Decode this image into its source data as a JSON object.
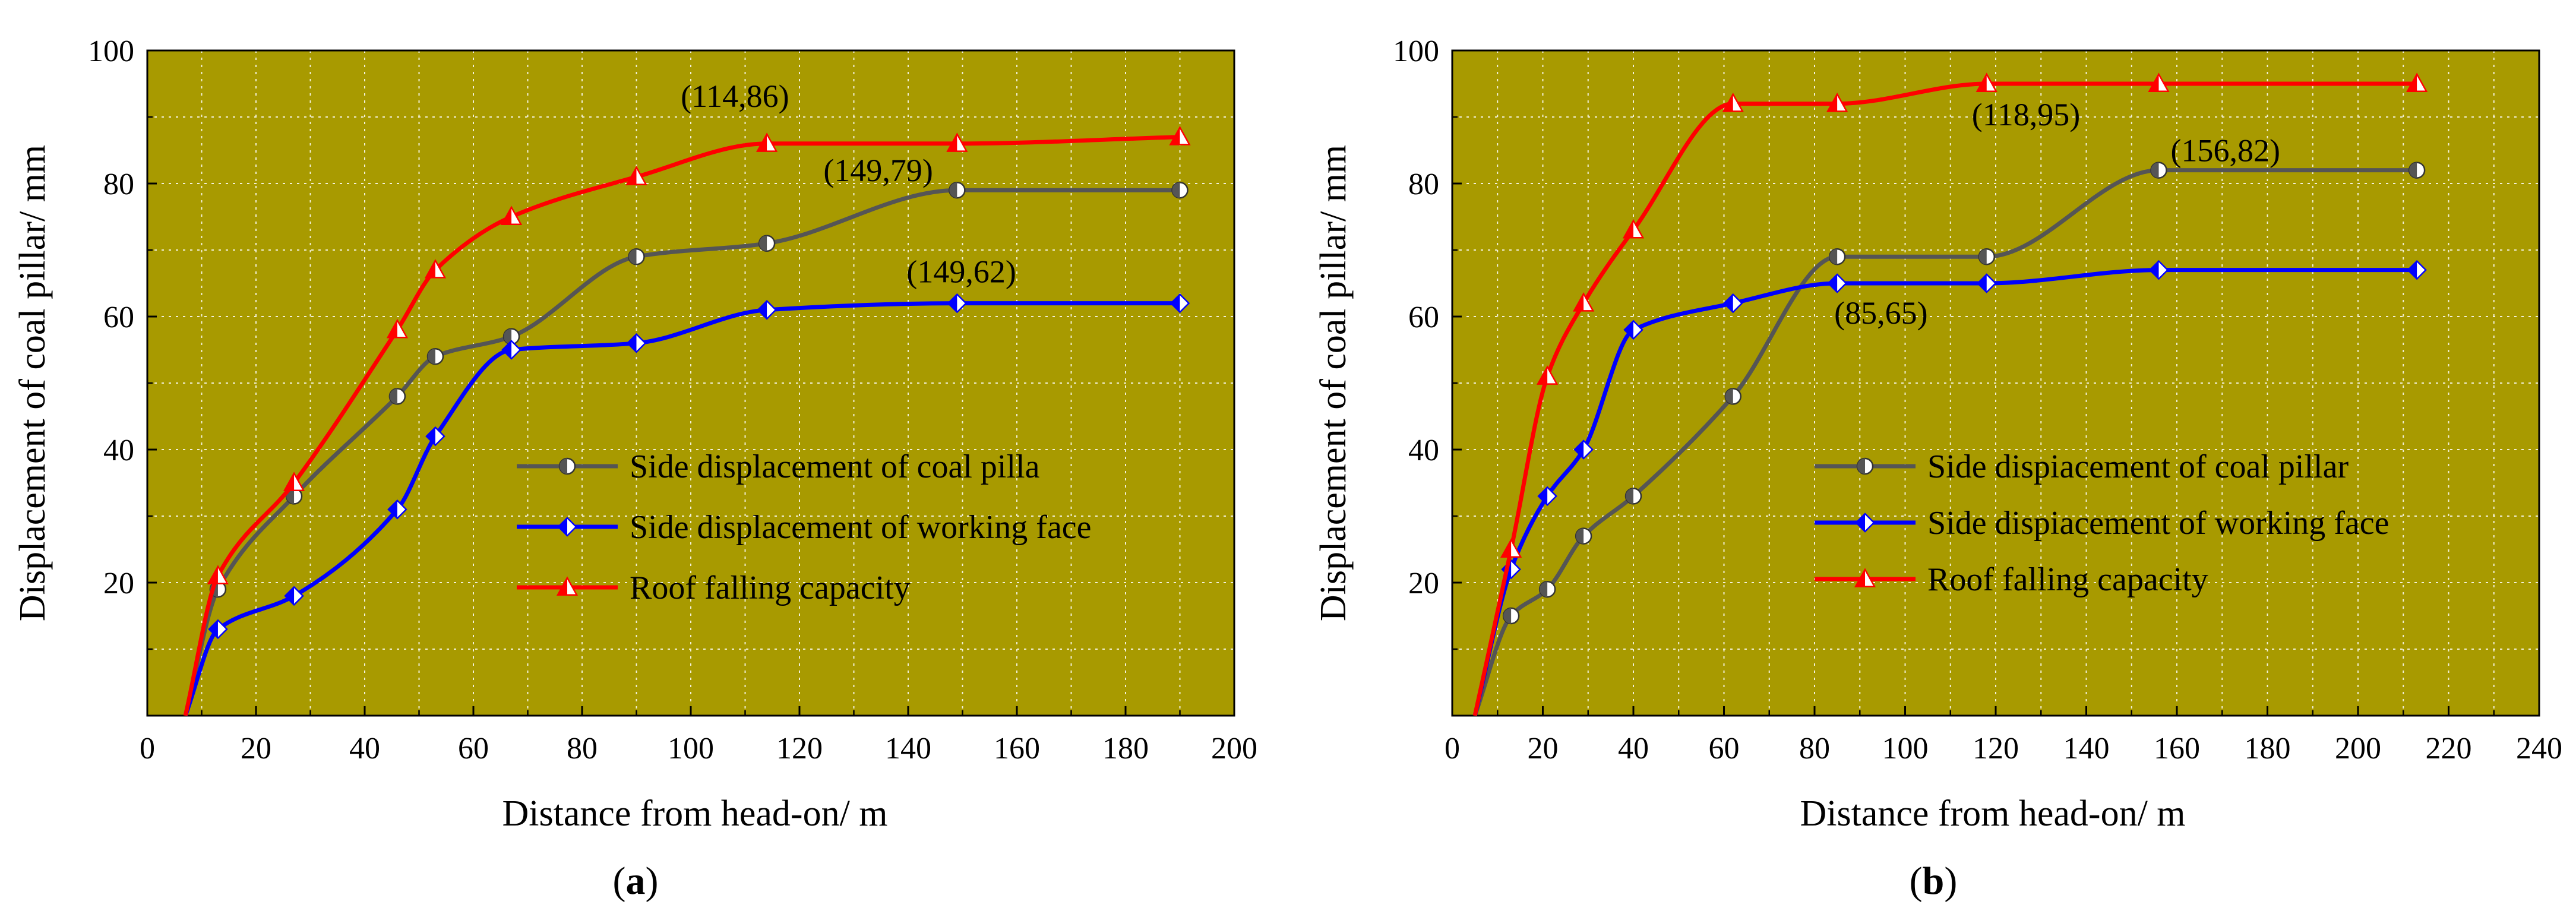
{
  "chart_data": [
    {
      "type": "line",
      "panel_label": "(a)",
      "xlabel": "Distance from head-on/ m",
      "ylabel": "Displacement of coal pillar/ mm",
      "xlim": [
        0,
        200
      ],
      "ylim": [
        0,
        100
      ],
      "xticks": [
        0,
        20,
        40,
        60,
        80,
        100,
        120,
        140,
        160,
        180,
        200
      ],
      "yticks": [
        20,
        40,
        60,
        80,
        100
      ],
      "grid": true,
      "background": "#a89a00",
      "legend_position": "center-right",
      "series": [
        {
          "name": "Side displacement of coal pilla",
          "color": "#555555",
          "marker": "circle",
          "x": [
            7,
            13,
            27,
            46,
            53,
            67,
            90,
            114,
            149,
            190
          ],
          "y": [
            0,
            19,
            33,
            48,
            54,
            57,
            69,
            71,
            79,
            79
          ]
        },
        {
          "name": "Side displacement of working face",
          "color": "#0000ff",
          "marker": "diamond",
          "x": [
            7,
            13,
            27,
            46,
            53,
            67,
            90,
            114,
            149,
            190
          ],
          "y": [
            0,
            13,
            18,
            31,
            42,
            55,
            56,
            61,
            62,
            62
          ]
        },
        {
          "name": "Roof falling capacity",
          "color": "#ff0000",
          "marker": "triangle",
          "x": [
            7,
            13,
            27,
            46,
            53,
            67,
            90,
            114,
            149,
            190
          ],
          "y": [
            0,
            21,
            35,
            58,
            67,
            75,
            81,
            86,
            86,
            87
          ]
        }
      ],
      "annotations": [
        {
          "text": "(114,86)",
          "x": 114,
          "y": 86,
          "dx": -145,
          "dy": -62
        },
        {
          "text": "(149,79)",
          "x": 149,
          "y": 79,
          "dx": -225,
          "dy": -15
        },
        {
          "text": "(149,62)",
          "x": 149,
          "y": 62,
          "dx": -85,
          "dy": -35
        }
      ]
    },
    {
      "type": "line",
      "panel_label": "(b)",
      "xlabel": "Distance from head-on/ m",
      "ylabel": "Displacement of coal pillar/ mm",
      "xlim": [
        0,
        240
      ],
      "ylim": [
        0,
        100
      ],
      "xticks": [
        0,
        20,
        40,
        60,
        80,
        100,
        120,
        140,
        160,
        180,
        200,
        220,
        240
      ],
      "yticks": [
        20,
        40,
        60,
        80,
        100
      ],
      "grid": true,
      "background": "#a89a00",
      "legend_position": "center-right",
      "series": [
        {
          "name": "Side dispiacement of coal pillar",
          "color": "#555555",
          "marker": "circle",
          "x": [
            5,
            13,
            21,
            29,
            40,
            62,
            85,
            118,
            156,
            213
          ],
          "y": [
            0,
            15,
            19,
            27,
            33,
            48,
            69,
            69,
            82,
            82
          ]
        },
        {
          "name": "Side dispiacement of working face",
          "color": "#0000ff",
          "marker": "diamond",
          "x": [
            5,
            13,
            21,
            29,
            40,
            62,
            85,
            118,
            156,
            213
          ],
          "y": [
            0,
            22,
            33,
            40,
            58,
            62,
            65,
            65,
            67,
            67
          ]
        },
        {
          "name": "Roof falling capacity",
          "color": "#ff0000",
          "marker": "triangle",
          "x": [
            5,
            13,
            21,
            29,
            40,
            62,
            85,
            118,
            156,
            213
          ],
          "y": [
            0,
            25,
            51,
            62,
            73,
            92,
            92,
            95,
            95,
            95
          ]
        }
      ],
      "annotations": [
        {
          "text": "(118,95)",
          "x": 118,
          "y": 95,
          "dx": -25,
          "dy": 70
        },
        {
          "text": "(156,82)",
          "x": 156,
          "y": 82,
          "dx": 20,
          "dy": -15
        },
        {
          "text": "(85,65)",
          "x": 85,
          "y": 65,
          "dx": -5,
          "dy": 68
        }
      ]
    }
  ]
}
